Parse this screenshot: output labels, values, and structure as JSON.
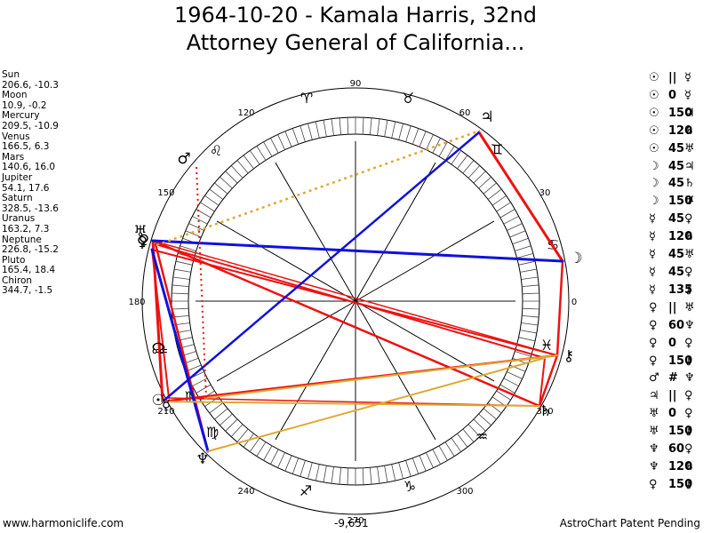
{
  "title": {
    "line1": "1964-10-20 - Kamala Harris, 32nd",
    "line2": "Attorney General of California..."
  },
  "positions": [
    {
      "name": "Sun",
      "value": "206.6, -10.3"
    },
    {
      "name": "Moon",
      "value": "10.9, -0.2"
    },
    {
      "name": "Mercury",
      "value": "209.5, -10.9"
    },
    {
      "name": "Venus",
      "value": "166.5, 6.3"
    },
    {
      "name": "Mars",
      "value": "140.6, 16.0"
    },
    {
      "name": "Jupiter",
      "value": "54.1, 17.6"
    },
    {
      "name": "Saturn",
      "value": "328.5, -13.6"
    },
    {
      "name": "Uranus",
      "value": "163.2, 7.3"
    },
    {
      "name": "Neptune",
      "value": "226.8, -15.2"
    },
    {
      "name": "Pluto",
      "value": "165.4, 18.4"
    },
    {
      "name": "Chiron",
      "value": "344.7, -1.5"
    }
  ],
  "aspects": [
    {
      "p1": "☉",
      "sym": "||",
      "p2": "☿"
    },
    {
      "p1": "☉",
      "sym": "0",
      "p2": "☿"
    },
    {
      "p1": "☉",
      "sym": "150",
      "p2": "♃"
    },
    {
      "p1": "☉",
      "sym": "120",
      "p2": "♄"
    },
    {
      "p1": "☉",
      "sym": "45",
      "p2": "♅"
    },
    {
      "p1": "☽",
      "sym": "45",
      "p2": "♃"
    },
    {
      "p1": "☽",
      "sym": "45",
      "p2": "♄"
    },
    {
      "p1": "☽",
      "sym": "150",
      "p2": "♅"
    },
    {
      "p1": "☿",
      "sym": "45",
      "p2": "♀"
    },
    {
      "p1": "☿",
      "sym": "120",
      "p2": "♄"
    },
    {
      "p1": "☿",
      "sym": "45",
      "p2": "♅"
    },
    {
      "p1": "☿",
      "sym": "45",
      "p2": "♀"
    },
    {
      "p1": "☿",
      "sym": "135",
      "p2": "⚷"
    },
    {
      "p1": "♀",
      "sym": "||",
      "p2": "♅"
    },
    {
      "p1": "♀",
      "sym": "60",
      "p2": "♆"
    },
    {
      "p1": "♀",
      "sym": "0",
      "p2": "♀"
    },
    {
      "p1": "♀",
      "sym": "150",
      "p2": "⚷"
    },
    {
      "p1": "♂",
      "sym": "#",
      "p2": "♆"
    },
    {
      "p1": "♃",
      "sym": "||",
      "p2": "♀"
    },
    {
      "p1": "♅",
      "sym": "0",
      "p2": "♀"
    },
    {
      "p1": "♅",
      "sym": "150",
      "p2": "⚷"
    },
    {
      "p1": "♆",
      "sym": "60",
      "p2": "♀"
    },
    {
      "p1": "♆",
      "sym": "120",
      "p2": "♄"
    },
    {
      "p1": "♀",
      "sym": "150",
      "p2": "⚷"
    }
  ],
  "wheel": {
    "degree_labels": [
      "90",
      "60",
      "30",
      "0",
      "330",
      "300",
      "270",
      "240",
      "210",
      "180",
      "150",
      "120"
    ],
    "signs": [
      "♈",
      "♉",
      "♊",
      "♋",
      "♌",
      "♍",
      "♎",
      "♏",
      "♐",
      "♑",
      "♒",
      "♓"
    ],
    "planet_glyphs": [
      "☉",
      "☽",
      "☿",
      "♀",
      "♂",
      "♃",
      "♄",
      "♅",
      "♆",
      "♀",
      "⚷",
      "☊"
    ]
  },
  "footer": {
    "left": "www.harmoniclife.com",
    "center": "-9,651",
    "right": "AstroChart Patent Pending"
  },
  "colors": {
    "red": "#ee1111",
    "blue": "#1111dd",
    "gold": "#ddaa33"
  }
}
